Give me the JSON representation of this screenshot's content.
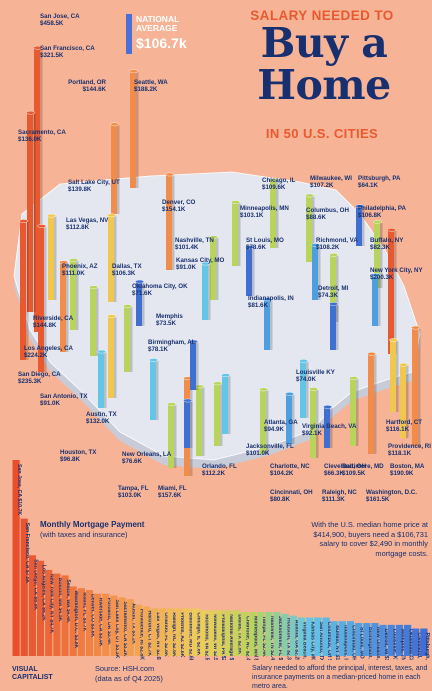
{
  "header": {
    "title_top": "SALARY NEEDED TO",
    "title_big_line1": "Buy a",
    "title_big_line2": "Home",
    "title_bottom": "IN 50 U.S. CITIES",
    "national_average_label": "NATIONAL AVERAGE",
    "national_average_value": "$106.7k"
  },
  "mortgage_section": {
    "title": "Monthly Mortgage Payment",
    "subtitle": "(with taxes and insurance)",
    "median_text": "With the U.S. median home price at $414,900, buyers need a $106,731 salary to cover $2,490 in monthly mortgage costs."
  },
  "footer": {
    "logo_line1": "VISUAL",
    "logo_line2": "CAPITALIST",
    "source_line1": "Source: HSH.com",
    "source_line2": "(data as of Q4 2025)",
    "footnote": "Salary needed to afford the principal, interest, taxes, and insurance payments on a median-priced home in each metro area."
  },
  "colors": {
    "background": "#f6b396",
    "title_orange": "#e9592f",
    "title_navy": "#18306f",
    "map_top": "#e4e7ef",
    "map_side": "#c8ccd8"
  },
  "chart_data": [
    {
      "type": "bar",
      "title": "SALARY NEEDED TO Buy a Home IN 50 U.S. CITIES",
      "description_units": "salary in $ thousands",
      "categories": [
        "San Jose, CA",
        "San Francisco, CA",
        "Los Angeles, CA",
        "San Diego, CA",
        "Seattle, WA",
        "Riverside, CA",
        "Sacramento, CA",
        "Portland, OR",
        "Denver, CO",
        "Boston, MA",
        "New York City, NY",
        "Salt Lake City, UT",
        "Providence, RI",
        "Washington, D.C.",
        "Las Vegas, NV",
        "Phoenix, AZ",
        "Baltimore, MD",
        "Miami, FL",
        "Orlando, FL",
        "Hartford, CT",
        "Raleigh, NC",
        "Nashville, TN",
        "Philadelphia, PA",
        "Charlotte, NC",
        "Chicago, IL",
        "Milwaukee, WI",
        "Richmond, VA",
        "National Average",
        "Dallas, TX",
        "Minneapolis, MN",
        "Austin, TX",
        "Tampa, FL",
        "Jacksonville, FL",
        "Atlanta, GA",
        "Columbus, OH",
        "Houston, TX",
        "Virginia Beach, VA",
        "Kansas City, MO",
        "San Antonio, TX",
        "Indianapolis, IN",
        "Cincinnati, OH",
        "St Louis, MO",
        "New Orleans, LA",
        "Birmingham, AL",
        "Louisville, KY",
        "Detroit, MI",
        "Memphis, TN",
        "Oklahoma City, OK",
        "Cleveland, OH",
        "Buffalo, NY",
        "Pittsburgh, PA"
      ],
      "values": [
        458.5,
        321.5,
        224.2,
        235.3,
        188.2,
        144.8,
        136.0,
        144.6,
        154.1,
        190.9,
        200.3,
        139.8,
        118.1,
        161.5,
        112.8,
        111.0,
        109.5,
        157.6,
        112.2,
        116.1,
        111.3,
        101.4,
        106.8,
        104.2,
        109.6,
        107.2,
        108.2,
        106.7,
        106.3,
        103.1,
        132.0,
        103.0,
        101.0,
        94.9,
        88.6,
        96.8,
        92.1,
        91.0,
        91.0,
        81.6,
        80.8,
        78.6,
        76.6,
        78.1,
        74.0,
        74.3,
        73.5,
        71.6,
        66.3,
        82.3,
        64.1
      ]
    },
    {
      "type": "bar",
      "title": "Monthly Mortgage Payment",
      "subtitle": "(with taxes and insurance)",
      "categories": [
        "San Jose, CA",
        "San Francisco, CA",
        "San Diego, CA",
        "Los Angeles, CA",
        "New York City, NY",
        "Boston, MA",
        "Seattle, WA",
        "Washington, D.C.",
        "Miami, FL",
        "Denver, CO",
        "Riverside, CA",
        "Portland, OR",
        "Salt Lake City, UT",
        "Sacramento, CA",
        "Austin, TX",
        "Providence, RI",
        "Hartford, CT",
        "Las Vegas, NV",
        "Orlando, FL",
        "Raleigh, NC",
        "Phoenix, AZ",
        "Baltimore, MD",
        "Chicago, IL",
        "Richmond, VA",
        "Milwaukee, WI",
        "Philadelphia, PA",
        "National Average",
        "Dallas, TX",
        "Charlotte, NC",
        "Minneapolis, MN",
        "Tampa, FL",
        "Nashville, TN",
        "Jacksonville, FL",
        "Houston, TX",
        "Atlanta, GA",
        "Virginia Beach, VA",
        "Kansas City, MO",
        "San Antonio, TX",
        "Columbus, OH",
        "Buffalo, NY",
        "Indianapolis, IN",
        "Cincinnati, OH",
        "St Louis, MO",
        "Birmingham, AL",
        "New Orleans, LA",
        "Detroit, MI",
        "Louisville, KY",
        "Memphis, TN",
        "Oklahoma City, OK",
        "Cleveland, OH",
        "Pittsburgh, PA"
      ],
      "values": [
        10.7,
        7.5,
        5.5,
        5.2,
        4.7,
        4.5,
        4.4,
        3.8,
        3.7,
        3.6,
        3.4,
        3.4,
        3.3,
        3.2,
        3.1,
        2.8,
        2.7,
        2.6,
        2.6,
        2.6,
        2.6,
        2.6,
        2.6,
        2.5,
        2.5,
        2.5,
        2.5,
        2.5,
        2.4,
        2.4,
        2.4,
        2.4,
        2.4,
        2.3,
        2.2,
        2.1,
        2.1,
        2.1,
        2.1,
        1.9,
        1.9,
        1.9,
        1.8,
        1.8,
        1.8,
        1.7,
        1.7,
        1.7,
        1.7,
        1.5,
        1.5
      ],
      "labels": [
        "$10.7K",
        "$7.5K",
        "$5.5K",
        "$5.2K",
        "$4.7K",
        "$4.5K",
        "$4.4K",
        "$3.8K",
        "$3.7K",
        "$3.6K",
        "$3.4K",
        "$3.4K",
        "$3.3K",
        "$3.2K",
        "$3.1K",
        "$2.8K",
        "$2.7K",
        "$2.6K",
        "$2.6K",
        "$2.6K",
        "$2.6K",
        "$2.6K",
        "$2.6K",
        "$2.5K",
        "$2.5K",
        "$2.5K",
        "$2.5K",
        "$2.5K",
        "$2.4K",
        "$2.4K",
        "$2.4K",
        "$2.4K",
        "$2.4K",
        "$2.3K",
        "$2.2K",
        "$2.1K",
        "$2.1K",
        "$2.1K",
        "$2.1K",
        "$1.9K",
        "$1.9K",
        "$1.9K",
        "$1.8K",
        "$1.8K",
        "$1.8K",
        "$1.7K",
        "$1.7K",
        "$1.7K",
        "$1.7K",
        "$1.5K",
        "$1.5K"
      ]
    }
  ],
  "city_labels": [
    {
      "name": "San Jose, CA",
      "value": "$458.5K"
    },
    {
      "name": "San Francisco, CA",
      "value": "$321.5K"
    },
    {
      "name": "Portland, OR",
      "value": "$144.6K"
    },
    {
      "name": "Seattle, WA",
      "value": "$188.2K"
    },
    {
      "name": "Sacramento, CA",
      "value": "$136.0K"
    },
    {
      "name": "Salt Lake City, UT",
      "value": "$139.8K"
    },
    {
      "name": "Las Vegas, NV",
      "value": "$112.8K"
    },
    {
      "name": "Denver, CO",
      "value": "$154.1K"
    },
    {
      "name": "Phoenix, AZ",
      "value": "$111.0K"
    },
    {
      "name": "Dallas, TX",
      "value": "$106.3K"
    },
    {
      "name": "Riverside, CA",
      "value": "$144.8K"
    },
    {
      "name": "Los Angeles, CA",
      "value": "$224.2K"
    },
    {
      "name": "San Diego, CA",
      "value": "$235.3K"
    },
    {
      "name": "San Antonio, TX",
      "value": "$91.0K"
    },
    {
      "name": "Austin, TX",
      "value": "$132.0K"
    },
    {
      "name": "Houston, TX",
      "value": "$96.8K"
    },
    {
      "name": "Tampa, FL",
      "value": "$103.0K"
    },
    {
      "name": "Miami, FL",
      "value": "$157.6K"
    },
    {
      "name": "New Orleans, LA",
      "value": "$76.6K"
    },
    {
      "name": "Orlando, FL",
      "value": "$112.2K"
    },
    {
      "name": "Chicago, IL",
      "value": "$109.6K"
    },
    {
      "name": "Milwaukee, WI",
      "value": "$107.2K"
    },
    {
      "name": "Pittsburgh, PA",
      "value": "$64.1K"
    },
    {
      "name": "Minneapolis, MN",
      "value": "$103.1K"
    },
    {
      "name": "Columbus, OH",
      "value": "$88.6K"
    },
    {
      "name": "Philadelphia, PA",
      "value": "$106.8K"
    },
    {
      "name": "Nashville, TN",
      "value": "$101.4K"
    },
    {
      "name": "St Louis, MO",
      "value": "$78.6K"
    },
    {
      "name": "Richmond, VA",
      "value": "$108.2K"
    },
    {
      "name": "Buffalo, NY",
      "value": "$82.3K"
    },
    {
      "name": "Kansas City, MO",
      "value": "$91.0K"
    },
    {
      "name": "New York City, NY",
      "value": "$200.3K"
    },
    {
      "name": "Oklahoma City, OK",
      "value": "$71.6K"
    },
    {
      "name": "Detroit, MI",
      "value": "$74.3K"
    },
    {
      "name": "Indianapolis, IN",
      "value": "$81.6K"
    },
    {
      "name": "Memphis",
      "value": "$73.5K"
    },
    {
      "name": "Birmingham, AL",
      "value": "$78.1K"
    },
    {
      "name": "Louisville KY",
      "value": "$74.0K"
    },
    {
      "name": "Atlanta, GA",
      "value": "$94.9K"
    },
    {
      "name": "Jacksonville, FL",
      "value": "$101.0K"
    },
    {
      "name": "Charlotte, NC",
      "value": "$104.2K"
    },
    {
      "name": "Cincinnati, OH",
      "value": "$80.8K"
    },
    {
      "name": "Virginia Beach, VA",
      "value": "$92.1K"
    },
    {
      "name": "Cleveland, OH",
      "value": "$66.3K"
    },
    {
      "name": "Raleigh, NC",
      "value": "$111.3K"
    },
    {
      "name": "Baltimore, MD",
      "value": "$109.5K"
    },
    {
      "name": "Washington, D.C.",
      "value": "$161.5K"
    },
    {
      "name": "Hartford, CT",
      "value": "$116.1K"
    },
    {
      "name": "Providence, RI",
      "value": "$118.1K"
    },
    {
      "name": "Boston, MA",
      "value": "$190.9K"
    }
  ]
}
